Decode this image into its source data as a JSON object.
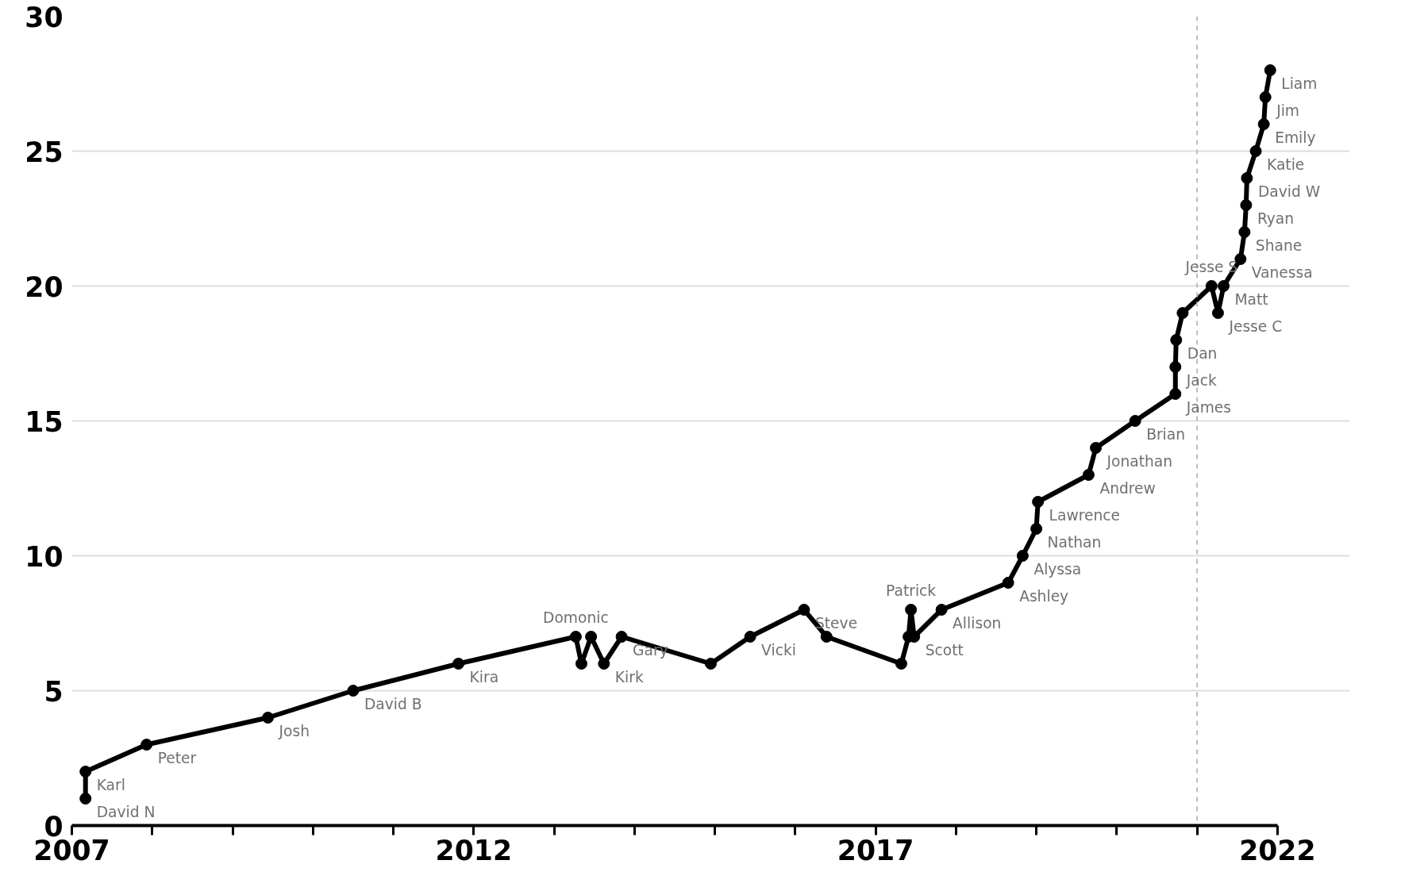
{
  "chart_data": {
    "type": "line",
    "color": "#000000",
    "marker": "circle",
    "line_style": "solid",
    "grid": "y",
    "x": [
      2007.17,
      2007.17,
      2007.93,
      2009.44,
      2010.5,
      2011.81,
      2013.27,
      2013.34,
      2013.46,
      2013.62,
      2013.84,
      2014.95,
      2015.44,
      2016.11,
      2016.39,
      2017.32,
      2017.41,
      2017.44,
      2017.48,
      2017.82,
      2018.65,
      2018.83,
      2019.0,
      2019.02,
      2019.65,
      2019.74,
      2020.23,
      2020.73,
      2020.73,
      2020.74,
      2020.82,
      2021.18,
      2021.26,
      2021.33,
      2021.54,
      2021.59,
      2021.61,
      2021.62,
      2021.73,
      2021.83,
      2021.85,
      2021.91
    ],
    "values": [
      1,
      2,
      3,
      4,
      5,
      6,
      7,
      6,
      7,
      6,
      7,
      6,
      7,
      8,
      7,
      6,
      7,
      8,
      7,
      8,
      9,
      10,
      11,
      12,
      13,
      14,
      15,
      16,
      17,
      18,
      19,
      20,
      19,
      20,
      21,
      22,
      23,
      24,
      25,
      26,
      27,
      28
    ],
    "xlim": [
      2007,
      2022
    ],
    "ylim": [
      0,
      30
    ],
    "xticks": [
      2007,
      {
        "value": 2008,
        "label": null
      },
      {
        "value": 2009,
        "label": null
      },
      {
        "value": 2010,
        "label": null
      },
      {
        "value": 2011,
        "label": null
      },
      2012,
      {
        "value": 2013,
        "label": null
      },
      {
        "value": 2014,
        "label": null
      },
      {
        "value": 2015,
        "label": null
      },
      {
        "value": 2016,
        "label": null
      },
      2017,
      {
        "value": 2018,
        "label": null
      },
      {
        "value": 2019,
        "label": null
      },
      {
        "value": 2020,
        "label": null
      },
      {
        "value": 2021,
        "label": null
      },
      2022
    ],
    "yticks": [
      0,
      5,
      10,
      15,
      20,
      25,
      30
    ],
    "ref_lines": [
      {
        "axis": "x",
        "value": 2021,
        "color": "#bbbbbb",
        "line_style": "dashed"
      }
    ],
    "annotations": [
      {
        "text": "David N",
        "x": 2007.17,
        "y": 1
      },
      {
        "text": "Karl",
        "x": 2007.17,
        "y": 2
      },
      {
        "text": "Peter",
        "x": 2007.93,
        "y": 3
      },
      {
        "text": "Josh",
        "x": 2009.44,
        "y": 4
      },
      {
        "text": "David B",
        "x": 2010.5,
        "y": 5
      },
      {
        "text": "Kira",
        "x": 2011.81,
        "y": 6
      },
      {
        "text": "Domonic",
        "x": 2013.27,
        "y": 7
      },
      {
        "text": "Kirk",
        "x": 2013.62,
        "y": 6
      },
      {
        "text": "Gary",
        "x": 2013.84,
        "y": 7
      },
      {
        "text": "Vicki",
        "x": 2015.44,
        "y": 7
      },
      {
        "text": "Steve",
        "x": 2016.11,
        "y": 8
      },
      {
        "text": "Patrick",
        "x": 2017.44,
        "y": 8
      },
      {
        "text": "Scott",
        "x": 2017.48,
        "y": 7
      },
      {
        "text": "Allison",
        "x": 2017.82,
        "y": 8
      },
      {
        "text": "Ashley",
        "x": 2018.65,
        "y": 9
      },
      {
        "text": "Alyssa",
        "x": 2018.83,
        "y": 10
      },
      {
        "text": "Nathan",
        "x": 2019.0,
        "y": 11
      },
      {
        "text": "Lawrence",
        "x": 2019.02,
        "y": 12
      },
      {
        "text": "Andrew",
        "x": 2019.65,
        "y": 13
      },
      {
        "text": "Jonathan",
        "x": 2019.74,
        "y": 14
      },
      {
        "text": "Brian",
        "x": 2020.23,
        "y": 15
      },
      {
        "text": "James",
        "x": 2020.73,
        "y": 16
      },
      {
        "text": "Jack",
        "x": 2020.73,
        "y": 17
      },
      {
        "text": "Dan",
        "x": 2020.74,
        "y": 18
      },
      {
        "text": "Jesse S",
        "x": 2021.18,
        "y": 20
      },
      {
        "text": "Jesse C",
        "x": 2021.26,
        "y": 19
      },
      {
        "text": "Matt",
        "x": 2021.33,
        "y": 20
      },
      {
        "text": "Vanessa",
        "x": 2021.54,
        "y": 21
      },
      {
        "text": "Shane",
        "x": 2021.59,
        "y": 22
      },
      {
        "text": "Ryan",
        "x": 2021.61,
        "y": 23
      },
      {
        "text": "David W",
        "x": 2021.62,
        "y": 24
      },
      {
        "text": "Katie",
        "x": 2021.73,
        "y": 25
      },
      {
        "text": "Emily",
        "x": 2021.83,
        "y": 26
      },
      {
        "text": "Jim",
        "x": 2021.85,
        "y": 27
      },
      {
        "text": "Liam",
        "x": 2021.91,
        "y": 28
      }
    ]
  }
}
